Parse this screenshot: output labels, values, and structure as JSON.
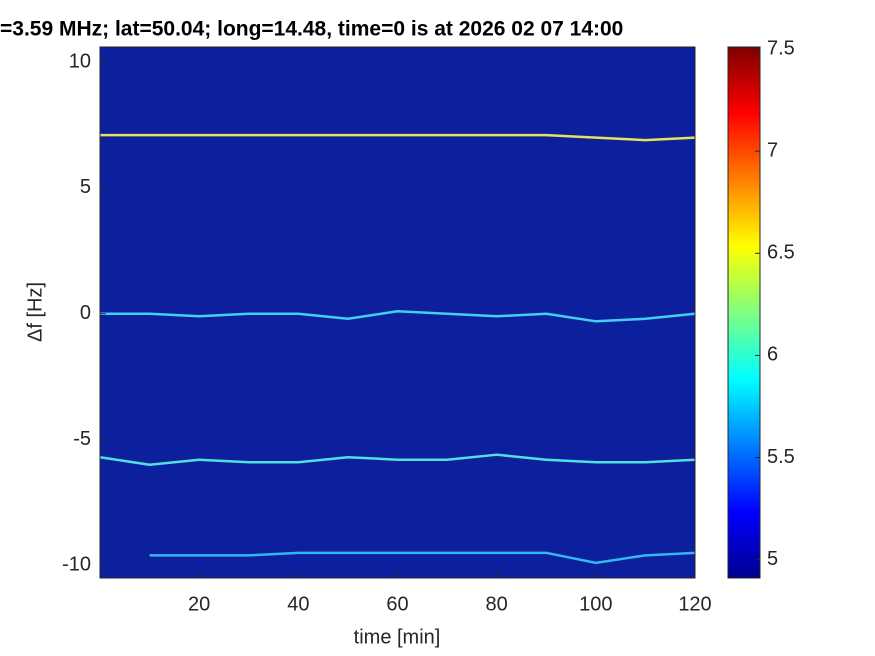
{
  "chart_data": {
    "type": "spectrogram",
    "title": "=3.59 MHz;  lat=50.04; long=14.48, time=0 is at 2026 02 07 14:00",
    "xlabel": "time [min]",
    "ylabel": "Δf [Hz]",
    "xlim": [
      0,
      120
    ],
    "ylim": [
      -10.5,
      10.6
    ],
    "xticks": [
      20,
      40,
      60,
      80,
      100,
      120
    ],
    "yticks": [
      -10,
      -5,
      0,
      5,
      10
    ],
    "background": "#0c1f9c",
    "x": [
      0,
      10,
      20,
      30,
      40,
      50,
      60,
      70,
      80,
      90,
      100,
      110,
      120
    ],
    "series": [
      {
        "color": "#e8e060",
        "values": [
          7.1,
          7.1,
          7.1,
          7.1,
          7.1,
          7.1,
          7.1,
          7.1,
          7.1,
          7.1,
          7.0,
          6.9,
          7.0
        ]
      },
      {
        "color": "#40d0f0",
        "values": [
          0,
          0,
          -0.1,
          0,
          0,
          -0.2,
          0.1,
          0,
          -0.1,
          0,
          -0.3,
          -0.2,
          0
        ]
      },
      {
        "color": "#50e0e0",
        "values": [
          -5.7,
          -6.0,
          -5.8,
          -5.9,
          -5.9,
          -5.7,
          -5.8,
          -5.8,
          -5.6,
          -5.8,
          -5.9,
          -5.9,
          -5.8
        ]
      },
      {
        "color": "#30b8f0",
        "values": [
          null,
          -9.6,
          -9.6,
          -9.6,
          -9.5,
          -9.5,
          -9.5,
          -9.5,
          -9.5,
          -9.5,
          -9.9,
          -9.6,
          -9.5
        ]
      }
    ],
    "colorbar": {
      "clim": [
        4.91,
        7.51
      ],
      "ticks": [
        5,
        5.5,
        6,
        6.5,
        7,
        7.5
      ]
    }
  }
}
